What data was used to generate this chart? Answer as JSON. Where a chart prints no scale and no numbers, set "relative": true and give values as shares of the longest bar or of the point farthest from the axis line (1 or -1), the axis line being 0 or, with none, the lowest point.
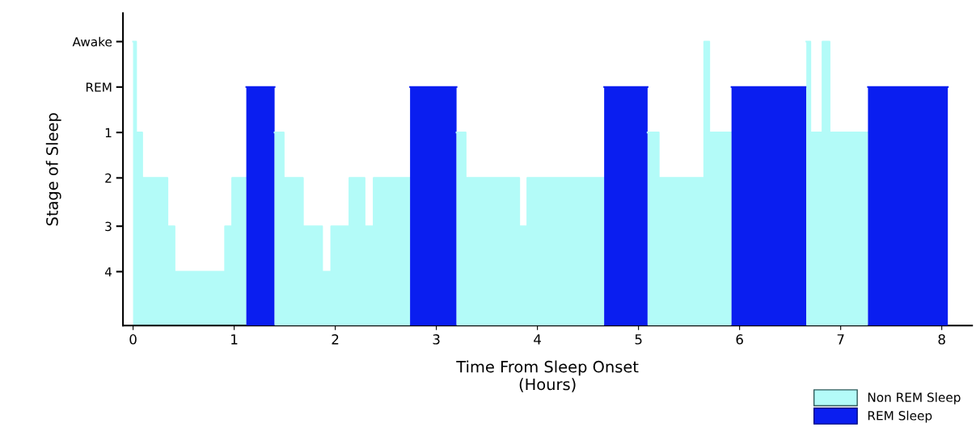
{
  "chart_data": {
    "type": "area",
    "relative": true,
    "xlabel": "Time From Sleep Onset\n(Hours)",
    "ylabel": "Stage of Sleep",
    "xlim": [
      -0.1,
      8.3
    ],
    "xticks": [
      0,
      1,
      2,
      3,
      4,
      5,
      6,
      7,
      8
    ],
    "annotations": [
      "Awake",
      "REM",
      "1",
      "2",
      "3",
      "4"
    ],
    "grid": false,
    "legend": "bottom right",
    "series": [
      {
        "name": "Non REM Sleep",
        "color": "#b3fbf8",
        "x": [
          0,
          0.03,
          0.03,
          0.09,
          0.09,
          0.34,
          0.34,
          0.41,
          0.41,
          0.91,
          0.91,
          0.98,
          0.98,
          1.12
        ],
        "values": [
          1,
          1,
          0.68,
          0.68,
          0.52,
          0.52,
          0.35,
          0.35,
          0.19,
          0.19,
          0.35,
          0.35,
          0.52,
          0.52
        ]
      },
      {
        "name": "REM Sleep",
        "color": "#0a1ef0",
        "x": [
          1.12,
          1.4
        ],
        "values": [
          0.84,
          0.84
        ]
      },
      {
        "color": "#b3fbf8",
        "x": [
          1.4,
          1.49,
          1.49,
          1.68,
          1.68,
          1.87,
          1.87,
          1.96,
          1.96,
          2.14,
          2.14,
          2.29,
          2.29,
          2.38,
          2.38,
          2.74
        ],
        "values": [
          0.68,
          0.68,
          0.52,
          0.52,
          0.35,
          0.35,
          0.19,
          0.19,
          0.35,
          0.35,
          0.52,
          0.52,
          0.35,
          0.35,
          0.52,
          0.52
        ]
      },
      {
        "color": "#0a1ef0",
        "x": [
          2.74,
          3.2
        ],
        "values": [
          0.84,
          0.84
        ]
      },
      {
        "color": "#b3fbf8",
        "x": [
          3.2,
          3.29,
          3.29,
          3.82,
          3.82,
          3.9,
          3.9,
          4.66
        ],
        "values": [
          0.68,
          0.68,
          0.52,
          0.52,
          0.35,
          0.35,
          0.52,
          0.52
        ]
      },
      {
        "color": "#0a1ef0",
        "x": [
          4.66,
          5.09
        ],
        "values": [
          0.84,
          0.84
        ]
      },
      {
        "color": "#b3fbf8",
        "x": [
          5.09,
          5.2,
          5.2,
          5.65,
          5.65,
          5.7,
          5.7,
          5.92
        ],
        "values": [
          0.68,
          0.68,
          0.52,
          0.52,
          1,
          1,
          0.68,
          0.68
        ]
      },
      {
        "color": "#0a1ef0",
        "x": [
          5.92,
          6.66
        ],
        "values": [
          0.84,
          0.84
        ]
      },
      {
        "color": "#b3fbf8",
        "x": [
          6.66,
          6.7,
          6.7,
          6.82,
          6.82,
          6.89,
          6.89,
          7.27
        ],
        "values": [
          1,
          1,
          0.68,
          0.68,
          1,
          1,
          0.68,
          0.68
        ]
      },
      {
        "color": "#0a1ef0",
        "x": [
          7.27,
          8.06
        ],
        "values": [
          0.84,
          0.84
        ]
      }
    ]
  }
}
